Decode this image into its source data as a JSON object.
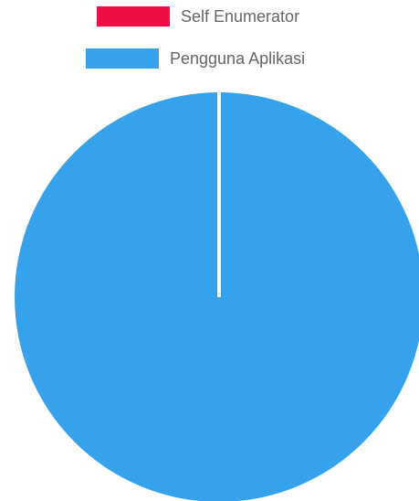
{
  "chart_data": {
    "type": "pie",
    "title": "",
    "legend_position": "top",
    "series": [
      {
        "name": "Self Enumerator",
        "value": 0,
        "color": "#ef0d45"
      },
      {
        "name": "Pengguna Aplikasi",
        "value": 100,
        "color": "#36a2eb"
      }
    ],
    "border_color": "#ffffff"
  }
}
